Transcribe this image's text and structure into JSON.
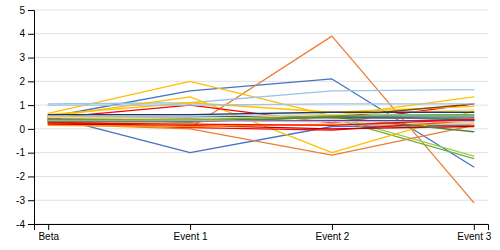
{
  "chart_data": {
    "type": "line",
    "categories": [
      "Beta",
      "Event 1",
      "Event 2",
      "Event 3"
    ],
    "series": [
      {
        "color": "#4472C4",
        "values": [
          0.5,
          1.6,
          2.1,
          -1.6
        ]
      },
      {
        "color": "#ED7D31",
        "values": [
          0.35,
          0.05,
          3.9,
          -3.1
        ]
      },
      {
        "color": "#92D050",
        "values": [
          0.4,
          0.3,
          0.55,
          -1.15
        ]
      },
      {
        "color": "#4472C4",
        "values": [
          0.55,
          -1.0,
          0.1,
          0.15
        ]
      },
      {
        "color": "#70AD47",
        "values": [
          0.3,
          0.45,
          0.45,
          -1.25
        ]
      },
      {
        "color": "#FFC000",
        "values": [
          0.65,
          2.0,
          0.55,
          1.35
        ]
      },
      {
        "color": "#9DC3E6",
        "values": [
          1.05,
          1.1,
          1.6,
          1.65
        ]
      },
      {
        "color": "#FFC000",
        "values": [
          0.5,
          1.35,
          -1.0,
          0.75
        ]
      },
      {
        "color": "#FF0000",
        "values": [
          0.45,
          1.0,
          0.25,
          1.05
        ]
      },
      {
        "color": "#ED7D31",
        "values": [
          0.2,
          0.0,
          -1.1,
          0.15
        ]
      },
      {
        "color": "#70AD47",
        "values": [
          0.35,
          0.35,
          0.6,
          0.35
        ]
      },
      {
        "color": "#2E75B6",
        "values": [
          0.5,
          0.5,
          0.5,
          0.5
        ]
      },
      {
        "color": "#70AD47",
        "values": [
          0.4,
          0.4,
          0.6,
          0.6
        ]
      },
      {
        "color": "#FF0000",
        "values": [
          0.28,
          0.05,
          -0.05,
          0.35
        ]
      },
      {
        "color": "#FFC000",
        "values": [
          0.6,
          1.1,
          0.7,
          0.95
        ]
      },
      {
        "color": "#BDD7EE",
        "values": [
          0.55,
          0.55,
          0.6,
          0.55
        ]
      },
      {
        "color": "#1F3864",
        "values": [
          0.5,
          0.5,
          0.5,
          0.4
        ]
      },
      {
        "color": "#808080",
        "values": [
          0.45,
          0.45,
          0.45,
          0.45
        ]
      },
      {
        "color": "#843C0C",
        "values": [
          0.4,
          0.3,
          0.5,
          1.05
        ]
      },
      {
        "color": "#D9D9D9",
        "values": [
          0.5,
          0.5,
          0.4,
          0.3
        ]
      },
      {
        "color": "#C00000",
        "values": [
          0.2,
          0.15,
          0.0,
          0.1
        ]
      },
      {
        "color": "#FF9900",
        "values": [
          0.15,
          0.1,
          0.2,
          0.2
        ]
      },
      {
        "color": "#538135",
        "values": [
          0.3,
          0.3,
          0.5,
          -0.12
        ]
      },
      {
        "color": "#9DC3E6",
        "values": [
          1.0,
          1.0,
          1.05,
          1.05
        ]
      },
      {
        "color": "#FFD966",
        "values": [
          0.5,
          0.4,
          0.6,
          0.8
        ]
      },
      {
        "color": "#7030A0",
        "values": [
          0.35,
          0.35,
          0.35,
          0.35
        ]
      },
      {
        "color": "#1F3864",
        "values": [
          0.6,
          0.6,
          0.7,
          0.7
        ]
      },
      {
        "color": "#BFBFBF",
        "values": [
          0.35,
          0.35,
          0.3,
          0.3
        ]
      },
      {
        "color": "#70AD47",
        "values": [
          0.38,
          0.38,
          0.55,
          0.55
        ]
      },
      {
        "color": "#FF0000",
        "values": [
          0.25,
          0.2,
          0.15,
          0.4
        ]
      }
    ],
    "ylim": [
      -4,
      5
    ],
    "yticks": [
      -4,
      -3,
      -2,
      -1,
      0,
      1,
      2,
      3,
      4,
      5
    ],
    "grid": true
  }
}
